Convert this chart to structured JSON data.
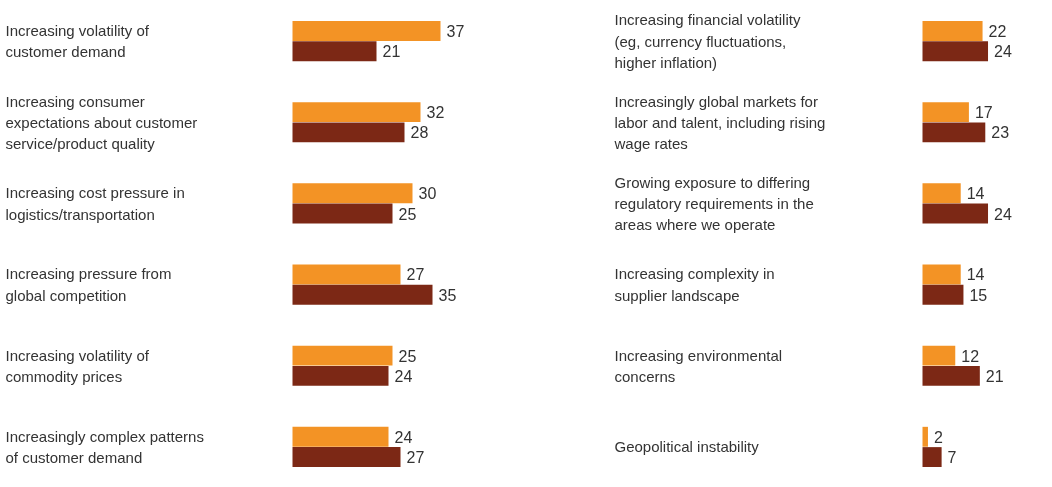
{
  "chart_data": [
    {
      "type": "bar",
      "orientation": "horizontal",
      "data_labels": true,
      "categories": [
        "Increasing volatility of\ncustomer demand",
        "Increasing consumer\nexpectations about customer\nservice/product quality",
        "Increasing cost pressure in\nlogistics/transportation",
        "Increasing pressure from\nglobal competition",
        "Increasing volatility of\ncommodity prices",
        "Increasingly complex patterns\nof customer demand"
      ],
      "series": [
        {
          "color": "#f39325",
          "values": [
            37,
            32,
            30,
            27,
            25,
            24
          ]
        },
        {
          "color": "#7c2815",
          "values": [
            21,
            28,
            25,
            35,
            24,
            27
          ]
        }
      ]
    },
    {
      "type": "bar",
      "orientation": "horizontal",
      "data_labels": true,
      "categories": [
        "Increasing financial volatility\n(eg, currency fluctuations,\nhigher inflation)",
        "Increasingly global markets for\nlabor and talent, including rising\nwage rates",
        "Growing exposure to differing\nregulatory requirements in the\nareas where we operate",
        "Increasing complexity in\nsupplier landscape",
        "Increasing environmental\nconcerns",
        "Geopolitical instability"
      ],
      "series": [
        {
          "color": "#f39325",
          "values": [
            22,
            17,
            14,
            14,
            12,
            2
          ]
        },
        {
          "color": "#7c2815",
          "values": [
            24,
            23,
            24,
            15,
            21,
            7
          ]
        }
      ]
    }
  ]
}
